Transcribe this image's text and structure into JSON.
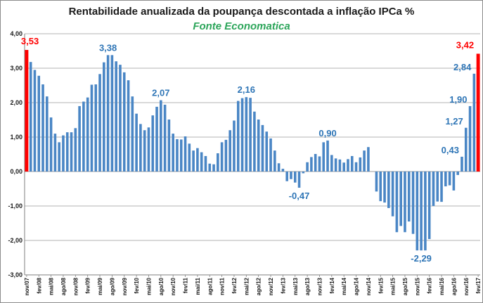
{
  "chart_data": {
    "type": "bar",
    "title": "Rentabilidade  anualizada da poupança descontada a inflação IPCa %",
    "subtitle": "Fonte Economatica",
    "xlabel": "",
    "ylabel": "",
    "ylim": [
      -3,
      4
    ],
    "yticks": [
      "4,00",
      "3,00",
      "2,00",
      "1,00",
      "0,00",
      "-1,00",
      "-2,00",
      "-3,00"
    ],
    "grid": true,
    "legend": "none",
    "bar_color": "#4a86c5",
    "highlight_color": "#ff0000",
    "x_tick_labels": [
      "nov/07",
      "fev/08",
      "mai/08",
      "ago/08",
      "nov/08",
      "fev/09",
      "mai/09",
      "ago/09",
      "nov/09",
      "fev/10",
      "mai/10",
      "ago/10",
      "nov/10",
      "fev/11",
      "mai/11",
      "ago/11",
      "nov/11",
      "fev/12",
      "mai/12",
      "ago/12",
      "nov/12",
      "fev/13",
      "mai/13",
      "ago/13",
      "nov/13",
      "fev/14",
      "mai/14",
      "ago/14",
      "nov/14",
      "fev/15",
      "mai/15",
      "ago/15",
      "nov/15",
      "fev/16",
      "mai/16",
      "ago/16",
      "nov/16",
      "fev/17"
    ],
    "values": [
      3.53,
      3.18,
      2.95,
      2.78,
      2.53,
      2.18,
      1.57,
      1.1,
      0.85,
      1.05,
      1.14,
      1.14,
      1.26,
      1.9,
      2.03,
      2.15,
      2.52,
      2.53,
      2.83,
      3.17,
      3.38,
      3.38,
      3.2,
      3.1,
      2.88,
      2.65,
      2.18,
      1.68,
      1.38,
      1.2,
      1.28,
      1.63,
      1.88,
      2.07,
      1.94,
      1.51,
      1.1,
      0.94,
      0.93,
      1.02,
      0.81,
      0.61,
      0.68,
      0.56,
      0.45,
      0.23,
      0.21,
      0.53,
      0.85,
      0.92,
      1.2,
      1.48,
      2.05,
      2.13,
      2.16,
      2.14,
      1.74,
      1.51,
      1.35,
      1.16,
      0.96,
      0.61,
      0.24,
      0.08,
      -0.28,
      -0.22,
      -0.32,
      -0.47,
      -0.05,
      0.27,
      0.42,
      0.51,
      0.44,
      0.85,
      0.9,
      0.48,
      0.38,
      0.35,
      0.26,
      0.36,
      0.45,
      0.27,
      0.41,
      0.61,
      0.71,
      0.0,
      -0.58,
      -0.86,
      -0.9,
      -1.06,
      -1.3,
      -1.76,
      -1.58,
      -1.76,
      -1.45,
      -1.81,
      -2.29,
      -2.29,
      -2.29,
      -1.96,
      -1.0,
      -0.87,
      -0.88,
      -0.43,
      -0.4,
      -0.55,
      -0.1,
      0.43,
      1.27,
      1.9,
      2.84,
      3.42
    ],
    "highlighted_indices": [
      0,
      111
    ],
    "annotations": [
      {
        "index": 0,
        "value": 3.53,
        "text": "3,53",
        "color": "#ff0000"
      },
      {
        "index": 20,
        "value": 3.38,
        "text": "3,38",
        "color": "#2e75b6"
      },
      {
        "index": 33,
        "value": 2.07,
        "text": "2,07",
        "color": "#2e75b6"
      },
      {
        "index": 54,
        "value": 2.16,
        "text": "2,16",
        "color": "#2e75b6"
      },
      {
        "index": 67,
        "value": -0.47,
        "text": "-0,47",
        "color": "#2e75b6"
      },
      {
        "index": 74,
        "value": 0.9,
        "text": "0,90",
        "color": "#2e75b6"
      },
      {
        "index": 97,
        "value": -2.29,
        "text": "-2,29",
        "color": "#2e75b6"
      },
      {
        "index": 107,
        "value": 0.43,
        "text": "0,43",
        "color": "#2e75b6"
      },
      {
        "index": 108,
        "value": 1.27,
        "text": "1,27",
        "color": "#2e75b6"
      },
      {
        "index": 109,
        "value": 1.9,
        "text": "1,90",
        "color": "#2e75b6"
      },
      {
        "index": 110,
        "value": 2.84,
        "text": "2,84",
        "color": "#2e75b6"
      },
      {
        "index": 111,
        "value": 3.42,
        "text": "3,42",
        "color": "#ff0000"
      }
    ]
  }
}
